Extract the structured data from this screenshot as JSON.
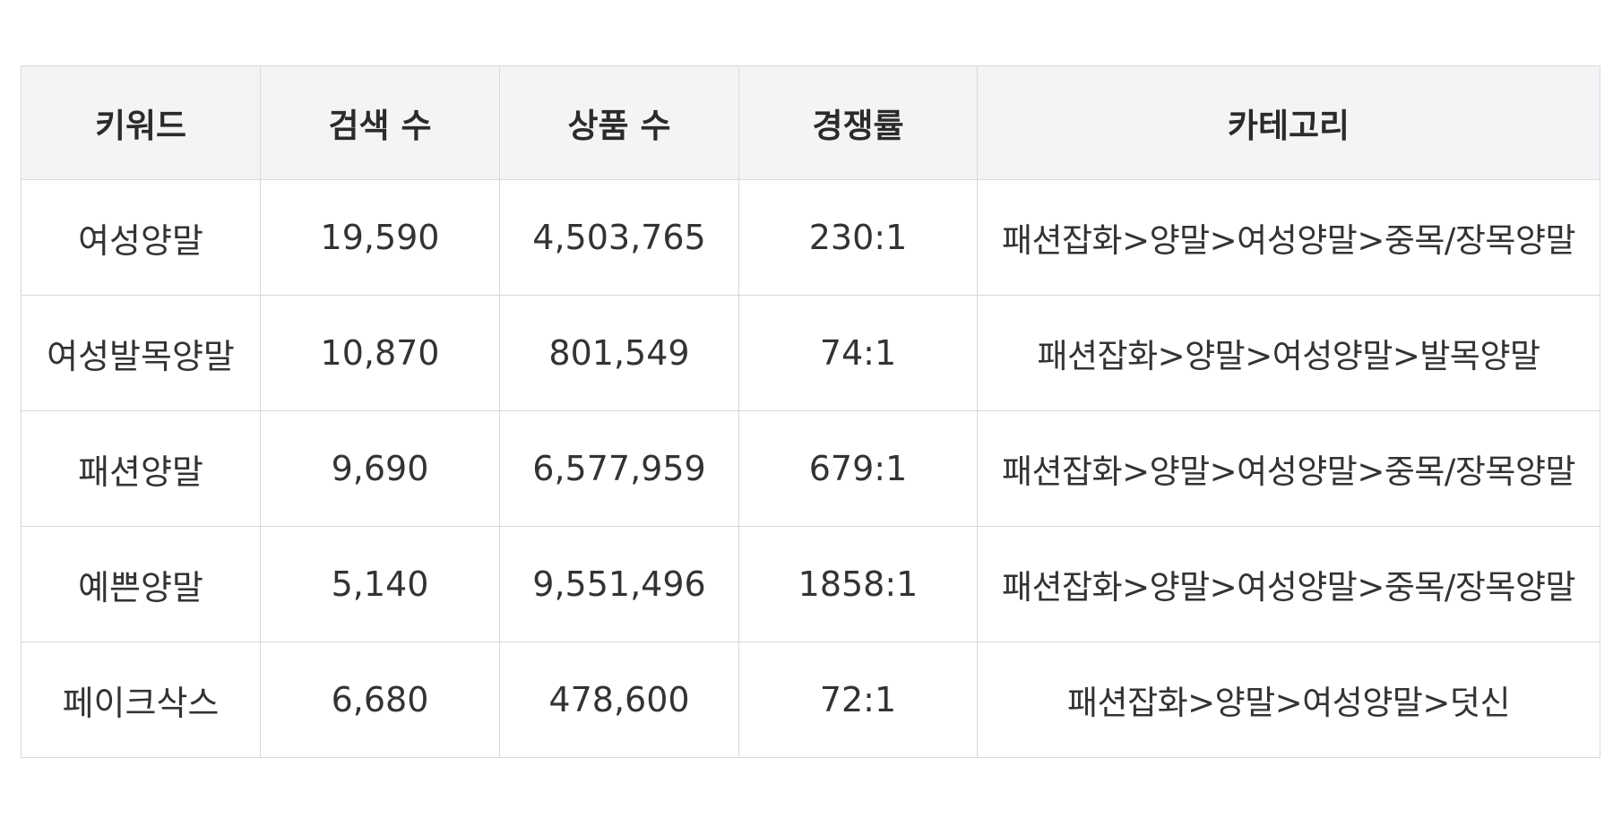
{
  "table": {
    "headers": [
      "키워드",
      "검색 수",
      "상품 수",
      "경쟁률",
      "카테고리"
    ],
    "rows": [
      [
        "여성양말",
        "19,590",
        "4,503,765",
        "230:1",
        "패션잡화>양말>여성양말>중목/장목양말"
      ],
      [
        "여성발목양말",
        "10,870",
        "801,549",
        "74:1",
        "패션잡화>양말>여성양말>발목양말"
      ],
      [
        "패션양말",
        "9,690",
        "6,577,959",
        "679:1",
        "패션잡화>양말>여성양말>중목/장목양말"
      ],
      [
        "예쁜양말",
        "5,140",
        "9,551,496",
        "1858:1",
        "패션잡화>양말>여성양말>중목/장목양말"
      ],
      [
        "페이크삭스",
        "6,680",
        "478,600",
        "72:1",
        "패션잡화>양말>여성양말>덧신"
      ]
    ]
  }
}
